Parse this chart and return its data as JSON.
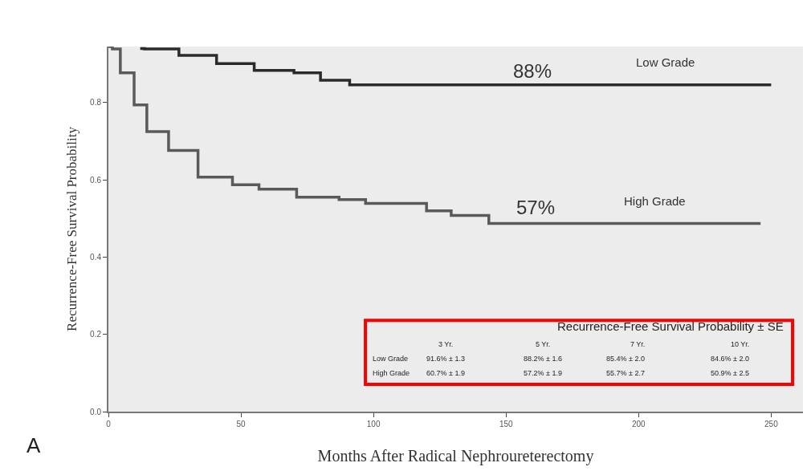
{
  "chart_data": {
    "type": "step",
    "xlabel": "Months After Radical Nephroureterectomy",
    "ylabel": "Recurrence-Free Survival Probability",
    "xlim": [
      0,
      262
    ],
    "xticks": [
      0,
      50,
      100,
      150,
      200,
      250
    ],
    "ylim": [
      0,
      0.945
    ],
    "yticks": [
      {
        "value": 0,
        "label": "0.0"
      },
      0.2,
      0.4,
      0.6,
      0.8
    ],
    "series": [
      {
        "name": "Low Grade",
        "color": "#2b2b2b",
        "x": [
          12,
          13.6,
          26.6,
          40.8,
          55,
          70,
          80,
          91,
          250
        ],
        "values": [
          0.94,
          0.939,
          0.922,
          0.901,
          0.883,
          0.877,
          0.858,
          0.846,
          0.846
        ]
      },
      {
        "name": "High Grade",
        "color": "#5a5a5a",
        "x": [
          0,
          1.5,
          4.5,
          9.7,
          14.5,
          22.7,
          33.8,
          46.8,
          56.8,
          71,
          87,
          97,
          117,
          120,
          129.3,
          142.6,
          143.5,
          246
        ],
        "values": [
          0.945,
          0.939,
          0.877,
          0.794,
          0.725,
          0.676,
          0.607,
          0.587,
          0.576,
          0.555,
          0.549,
          0.539,
          0.539,
          0.52,
          0.508,
          0.508,
          0.487,
          0.487
        ]
      }
    ],
    "annotations": [
      "88%",
      "57%",
      "A",
      "Recurrence-Free Survival Probability ± SE",
      "3 Yr.",
      "5 Yr.",
      "7 Yr.",
      "10 Yr.",
      "Low Grade",
      "91.6% ± 1.3",
      "88.2% ± 1.6",
      "85.4% ± 2.0",
      "84.6% ± 2.0",
      "High Grade",
      "60.7% ± 1.9",
      "57.2% ± 1.9",
      "55.7% ± 2.7",
      "50.9% ± 2.5"
    ]
  }
}
